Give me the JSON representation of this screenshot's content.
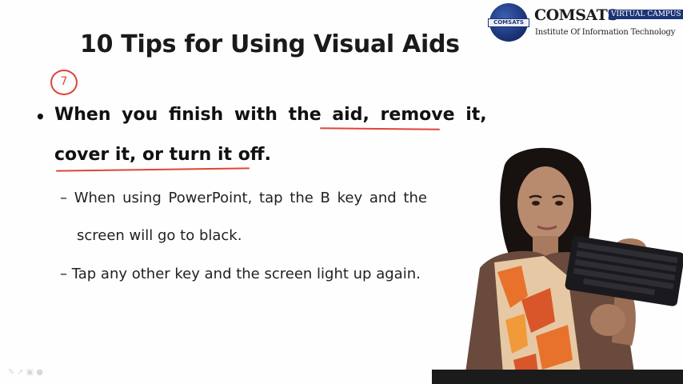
{
  "slide": {
    "title": "10 Tips for Using Visual Aids",
    "annotation_number": "7",
    "bullet": {
      "marker": "•",
      "line1": "When you finish with the aid, remove it,",
      "line2": "cover it, or turn it off."
    },
    "subpoints": [
      {
        "line1": "– When using PowerPoint, tap the B key and the",
        "line2": "screen will go to black."
      },
      {
        "line1": "– Tap any other key and the screen light up again."
      }
    ]
  },
  "logo": {
    "name": "COMSATS",
    "badge": "VIRTUAL CAMPUS",
    "subtitle": "Institute Of Information Technology",
    "globe_label": "COMSATS"
  },
  "colors": {
    "annotation_red": "#e0443a",
    "logo_blue": "#1c3579"
  },
  "icons": [
    "pen-icon",
    "pointer-icon",
    "slides-icon",
    "options-icon"
  ]
}
